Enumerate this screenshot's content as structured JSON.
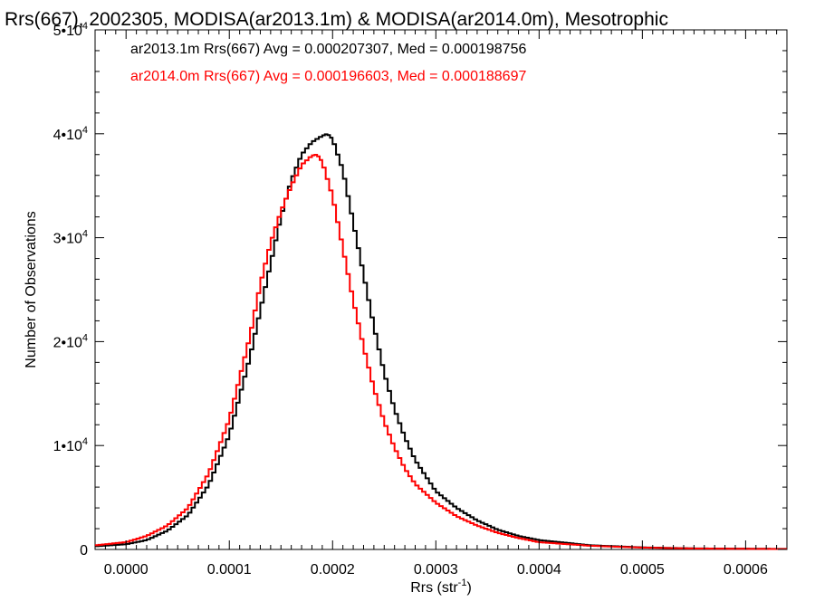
{
  "chart_data": {
    "type": "line",
    "title": "Rrs(667), 2002305, MODISA(ar2013.1m) & MODISA(ar2014.0m), Mesotrophic",
    "xlabel": "Rrs (str⁻¹)",
    "xlabel_base": "Rrs (str",
    "xlabel_sup": "-1",
    "xlabel_close": ")",
    "ylabel": "Number of Observations",
    "xlim": [
      -3e-05,
      0.00064
    ],
    "ylim": [
      0,
      50000
    ],
    "x_ticks": [
      {
        "value": 0.0,
        "label": "0.0000"
      },
      {
        "value": 0.0001,
        "label": "0.0001"
      },
      {
        "value": 0.0002,
        "label": "0.0002"
      },
      {
        "value": 0.0003,
        "label": "0.0003"
      },
      {
        "value": 0.0004,
        "label": "0.0004"
      },
      {
        "value": 0.0005,
        "label": "0.0005"
      },
      {
        "value": 0.0006,
        "label": "0.0006"
      }
    ],
    "y_ticks": [
      {
        "value": 0,
        "mant": "0",
        "exp": ""
      },
      {
        "value": 10000,
        "mant": "1•10",
        "exp": "4"
      },
      {
        "value": 20000,
        "mant": "2•10",
        "exp": "4"
      },
      {
        "value": 30000,
        "mant": "3•10",
        "exp": "4"
      },
      {
        "value": 40000,
        "mant": "4•10",
        "exp": "4"
      },
      {
        "value": 50000,
        "mant": "5•10",
        "exp": "4"
      }
    ],
    "grid": false,
    "legend_position": "top-left",
    "series": [
      {
        "name": "ar2013.1m",
        "color": "#000000",
        "legend_text": "ar2013.1m Rrs(667) Avg = 0.000207307, Med = 0.000198756",
        "x": [
          -3e-05,
          0.0,
          2e-05,
          4e-05,
          6e-05,
          8e-05,
          0.0001,
          0.00012,
          0.00014,
          0.00015,
          0.00016,
          0.00017,
          0.00018,
          0.00019,
          0.000195,
          0.0002,
          0.00021,
          0.00022,
          0.00023,
          0.00024,
          0.00025,
          0.00026,
          0.00027,
          0.00028,
          0.0003,
          0.00032,
          0.00034,
          0.00036,
          0.00038,
          0.0004,
          0.00045,
          0.0005,
          0.00055,
          0.00064
        ],
        "y": [
          300,
          500,
          900,
          1800,
          3300,
          6200,
          11000,
          18500,
          27500,
          32000,
          35500,
          38000,
          39200,
          39800,
          40000,
          39500,
          36500,
          31500,
          26500,
          21500,
          17000,
          13500,
          10800,
          8600,
          5600,
          4000,
          2800,
          1900,
          1300,
          900,
          400,
          200,
          100,
          50
        ]
      },
      {
        "name": "ar2014.0m",
        "color": "#ff0000",
        "legend_text": "ar2014.0m Rrs(667) Avg = 0.000196603, Med = 0.000188697",
        "x": [
          -3e-05,
          0.0,
          2e-05,
          4e-05,
          6e-05,
          8e-05,
          0.0001,
          0.00012,
          0.00013,
          0.00014,
          0.00015,
          0.00016,
          0.00017,
          0.00018,
          0.000185,
          0.00019,
          0.0002,
          0.00021,
          0.00022,
          0.00023,
          0.00024,
          0.00025,
          0.00026,
          0.00027,
          0.00028,
          0.0003,
          0.00032,
          0.00034,
          0.00036,
          0.00038,
          0.0004,
          0.00045,
          0.0005,
          0.00055,
          0.00064
        ],
        "y": [
          400,
          700,
          1300,
          2300,
          4000,
          7300,
          12500,
          20500,
          25500,
          29500,
          32500,
          35000,
          37000,
          37900,
          38000,
          37300,
          34000,
          29000,
          24000,
          19500,
          15500,
          12300,
          9800,
          7800,
          6300,
          4500,
          3200,
          2300,
          1600,
          1100,
          700,
          350,
          180,
          90,
          40
        ]
      }
    ]
  }
}
